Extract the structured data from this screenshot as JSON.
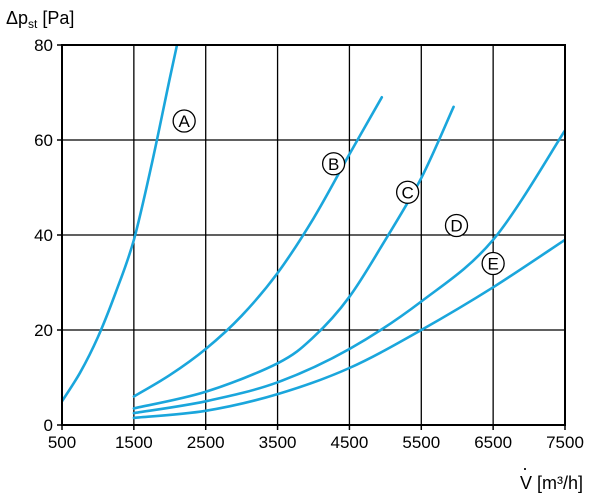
{
  "chart_data": {
    "type": "line",
    "ylabel_main": "Δp",
    "ylabel_sub": "st",
    "ylabel_unit": " [Pa]",
    "xlabel_symbol": "V",
    "xlabel_dot": "·",
    "xlabel_unit": " [m³/h]",
    "xlim": [
      500,
      7500
    ],
    "ylim": [
      0,
      80
    ],
    "x_ticks": [
      500,
      1500,
      2500,
      3500,
      4500,
      5500,
      6500,
      7500
    ],
    "x_tick_labels": [
      "500",
      "1500",
      "2500",
      "3500",
      "4500",
      "5500",
      "6500",
      "7500"
    ],
    "y_ticks": [
      0,
      20,
      40,
      60,
      80
    ],
    "y_tick_labels": [
      "0",
      "20",
      "40",
      "60",
      "80"
    ],
    "grid": true,
    "line_color": "#1aa6dc",
    "series": [
      {
        "name": "A",
        "label_at": [
          2200,
          64
        ],
        "x": [
          500,
          750,
          1000,
          1250,
          1500,
          1750,
          2000,
          2100
        ],
        "y": [
          5,
          11,
          18.5,
          28,
          39,
          55,
          73,
          80
        ]
      },
      {
        "name": "B",
        "label_at": [
          4280,
          55
        ],
        "x": [
          1500,
          2000,
          2500,
          3000,
          3500,
          4000,
          4500,
          4950
        ],
        "y": [
          6,
          10.5,
          16,
          23,
          32,
          43.5,
          57,
          69
        ]
      },
      {
        "name": "C",
        "label_at": [
          5310,
          49
        ],
        "x": [
          1500,
          2500,
          3500,
          4000,
          4500,
          5000,
          5500,
          5950
        ],
        "y": [
          3.5,
          7,
          13,
          18.5,
          27,
          39,
          52,
          67
        ]
      },
      {
        "name": "D",
        "label_at": [
          5990,
          42
        ],
        "x": [
          1500,
          2500,
          3500,
          4500,
          5500,
          6500,
          7500
        ],
        "y": [
          2.5,
          5,
          9,
          16,
          26,
          39,
          62
        ]
      },
      {
        "name": "E",
        "label_at": [
          6500,
          34
        ],
        "x": [
          1500,
          2500,
          3500,
          4500,
          5500,
          6500,
          7500
        ],
        "y": [
          1.5,
          3,
          6.5,
          12,
          20,
          29,
          39
        ]
      }
    ]
  }
}
